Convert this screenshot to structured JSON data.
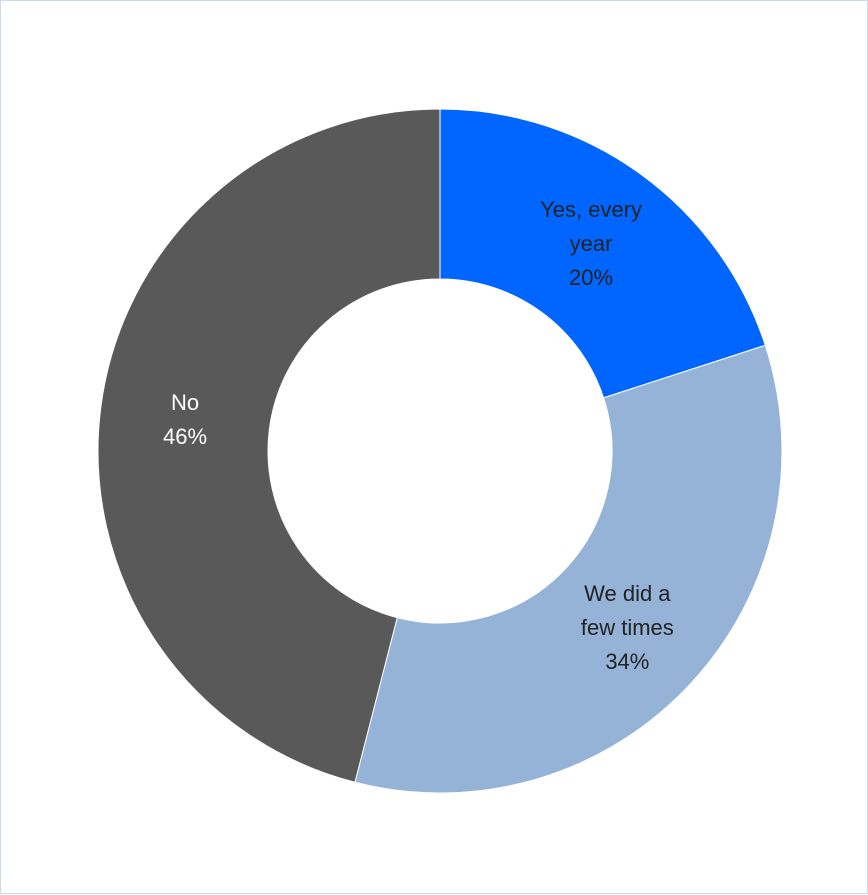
{
  "chart_data": {
    "type": "pie",
    "variant": "donut",
    "title": "",
    "slices": [
      {
        "label_lines": [
          "Yes, every",
          "year"
        ],
        "value": 20,
        "value_label": "20%",
        "color": "#0066ff",
        "text_color": "#222222"
      },
      {
        "label_lines": [
          "We did a",
          "few times"
        ],
        "value": 34,
        "value_label": "34%",
        "color": "#95b3d7",
        "text_color": "#222222"
      },
      {
        "label_lines": [
          "No"
        ],
        "value": 46,
        "value_label": "46%",
        "color": "#595959",
        "text_color": "#ffffff"
      }
    ],
    "legend": "none"
  }
}
